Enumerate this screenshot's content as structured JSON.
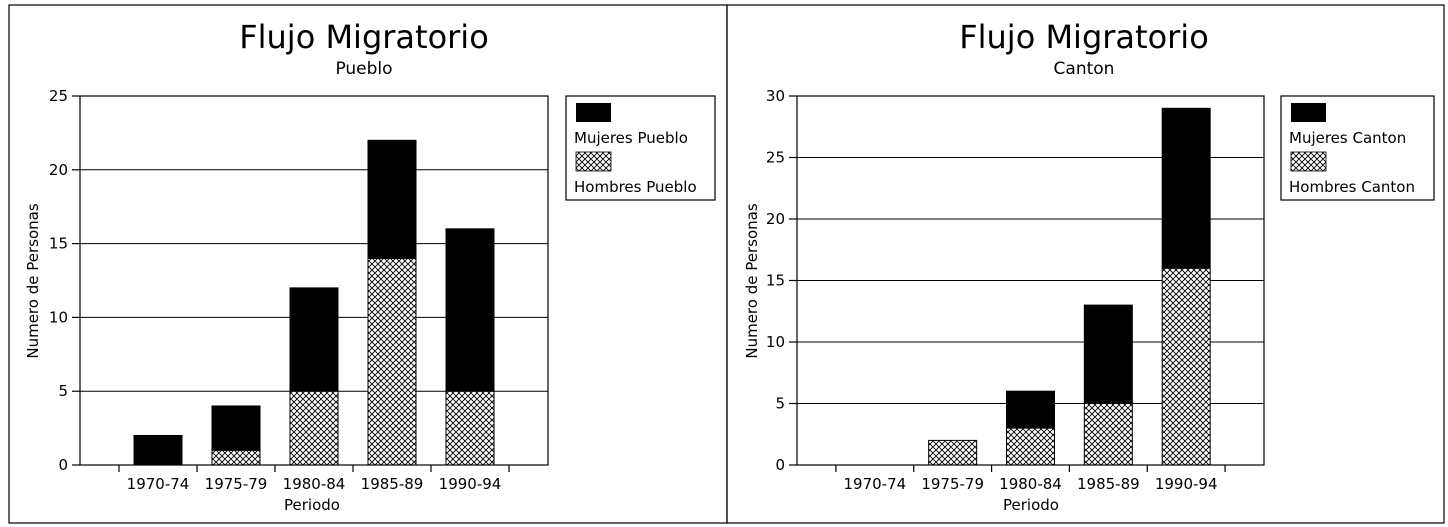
{
  "chart_data": [
    {
      "type": "bar",
      "stacked": true,
      "title": "Flujo Migratorio",
      "subtitle": "Pueblo",
      "xlabel": "Periodo",
      "ylabel": "Numero de Personas",
      "categories": [
        "1970-74",
        "1975-79",
        "1980-84",
        "1985-89",
        "1990-94"
      ],
      "ylim": [
        0,
        25
      ],
      "yticks": [
        0,
        5,
        10,
        15,
        20,
        25
      ],
      "grid": true,
      "legend_position": "right",
      "series": [
        {
          "name": "Hombres Pueblo",
          "values": [
            0,
            1,
            5,
            14,
            5
          ],
          "pattern": "crosshatch"
        },
        {
          "name": "Mujeres Pueblo",
          "values": [
            2,
            3,
            7,
            8,
            11
          ],
          "pattern": "solid"
        }
      ],
      "legend_order": [
        "Mujeres Pueblo",
        "Hombres Pueblo"
      ]
    },
    {
      "type": "bar",
      "stacked": true,
      "title": "Flujo Migratorio",
      "subtitle": "Canton",
      "xlabel": "Periodo",
      "ylabel": "Numero de Personas",
      "categories": [
        "1970-74",
        "1975-79",
        "1980-84",
        "1985-89",
        "1990-94"
      ],
      "ylim": [
        0,
        30
      ],
      "yticks": [
        0,
        5,
        10,
        15,
        20,
        25,
        30
      ],
      "grid": true,
      "legend_position": "right",
      "series": [
        {
          "name": "Hombres Canton",
          "values": [
            0,
            2,
            3,
            5,
            16
          ],
          "pattern": "crosshatch"
        },
        {
          "name": "Mujeres Canton",
          "values": [
            0,
            0,
            3,
            8,
            13
          ],
          "pattern": "solid"
        }
      ],
      "legend_order": [
        "Mujeres Canton",
        "Hombres Canton"
      ]
    }
  ],
  "colors": {
    "solid": "#000000",
    "hatch": "#000000",
    "background": "#ffffff"
  }
}
